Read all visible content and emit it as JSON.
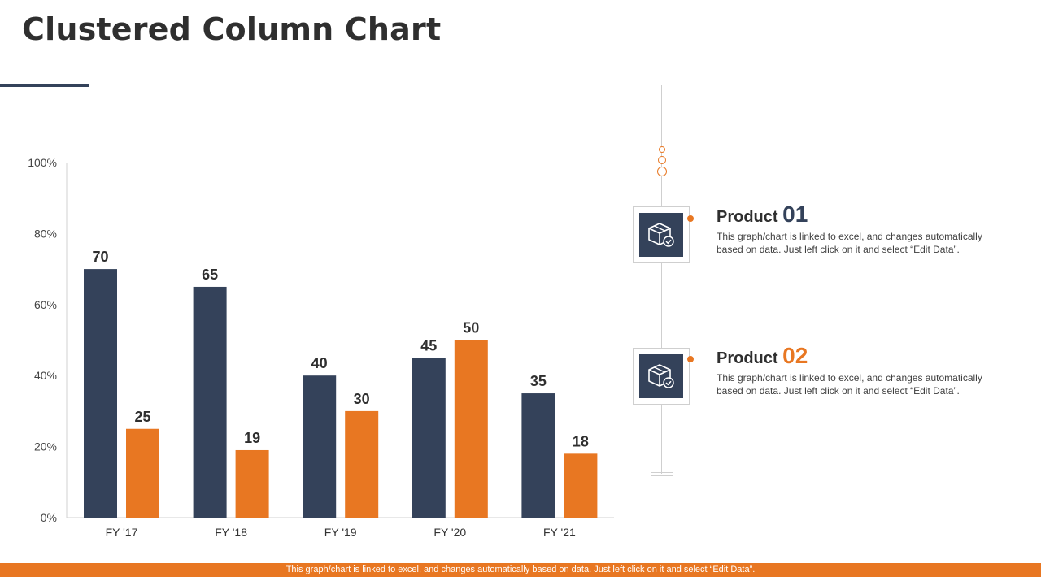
{
  "title": "Clustered Column Chart",
  "colors": {
    "series1": "#34425a",
    "series2": "#e87722",
    "accent": "#e87722"
  },
  "products": [
    {
      "label": "Product",
      "number": "01",
      "number_color": "#34425a",
      "icon": "box-check-icon",
      "description": "This graph/chart is linked to excel, and changes automatically based on data. Just left click on it and select “Edit Data”."
    },
    {
      "label": "Product",
      "number": "02",
      "number_color": "#e87722",
      "icon": "box-check-icon",
      "description": "This graph/chart is linked to excel, and changes automatically based on data. Just left click on it and select “Edit Data”."
    }
  ],
  "footer": "This graph/chart is linked to excel, and changes automatically based on data. Just left click on it and select “Edit Data”.",
  "chart_data": {
    "type": "bar",
    "categories": [
      "FY '17",
      "FY '18",
      "FY '19",
      "FY '20",
      "FY '21"
    ],
    "series": [
      {
        "values": [
          70,
          65,
          40,
          45,
          35
        ],
        "color": "#34425a"
      },
      {
        "values": [
          25,
          19,
          30,
          50,
          18
        ],
        "color": "#e87722"
      }
    ],
    "yticks": [
      "0%",
      "20%",
      "40%",
      "60%",
      "80%",
      "100%"
    ],
    "ylim": [
      0,
      100
    ],
    "grid": false,
    "legend": "none"
  }
}
